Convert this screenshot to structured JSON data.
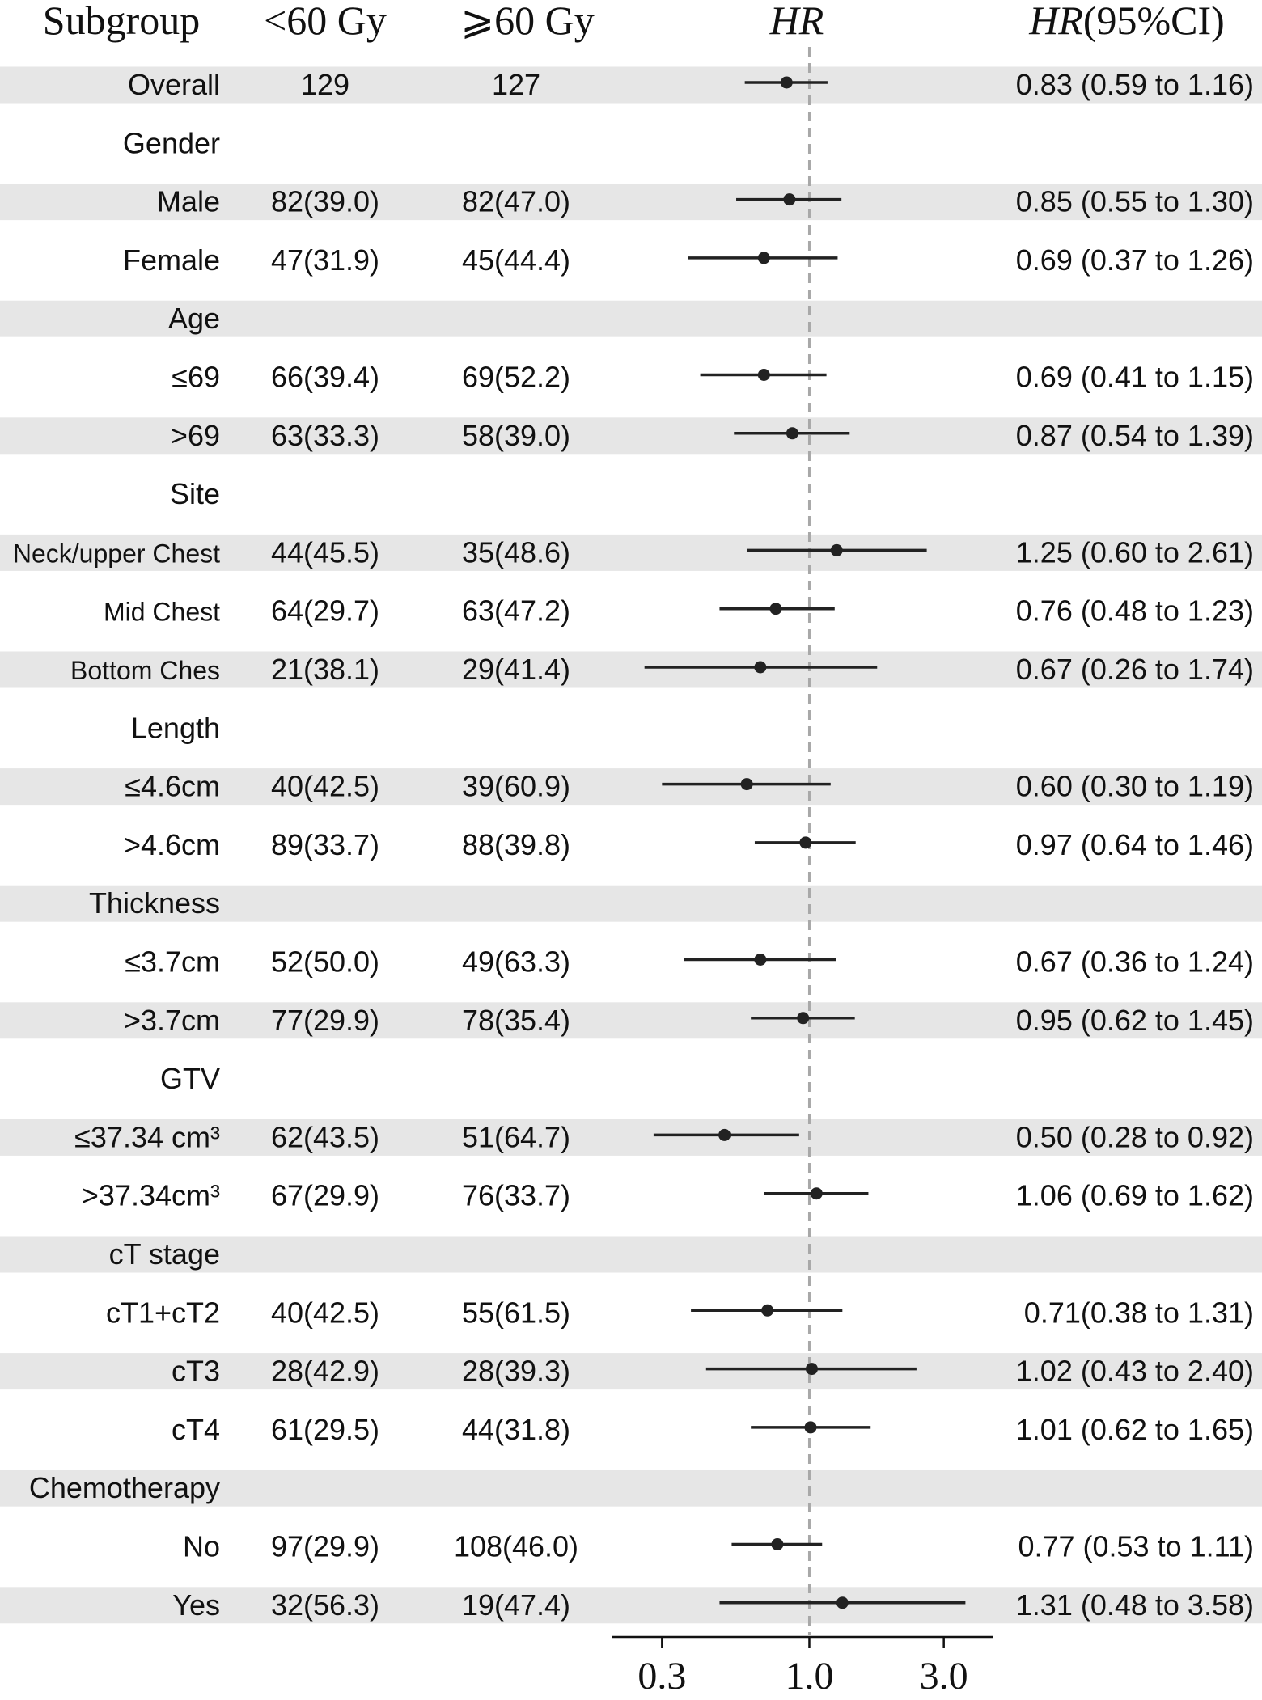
{
  "chart_data": {
    "type": "forest",
    "columns": {
      "subgroup": "Subgroup",
      "group_a": "<60 Gy",
      "group_b": "⩾60 Gy",
      "plot": "HR",
      "estimate_prefix": "HR",
      "estimate_suffix": "(95%CI)"
    },
    "x_scale": "log",
    "x_ticks": [
      0.3,
      1.0,
      3.0
    ],
    "x_tick_labels": [
      "0.3",
      "1.0",
      "3.0"
    ],
    "reference_line": 1.0,
    "rows": [
      {
        "label": "Overall",
        "a": "129",
        "b": "127",
        "hr": 0.83,
        "lo": 0.59,
        "hi": 1.16,
        "ci_text": "0.83 (0.59 to 1.16)",
        "header": false,
        "shaded": true
      },
      {
        "label": "Gender",
        "a": "",
        "b": "",
        "hr": null,
        "lo": null,
        "hi": null,
        "ci_text": "",
        "header": true,
        "shaded": false
      },
      {
        "label": "Male",
        "a": "82(39.0)",
        "b": "82(47.0)",
        "hr": 0.85,
        "lo": 0.55,
        "hi": 1.3,
        "ci_text": "0.85 (0.55 to 1.30)",
        "header": false,
        "shaded": true
      },
      {
        "label": "Female",
        "a": "47(31.9)",
        "b": "45(44.4)",
        "hr": 0.69,
        "lo": 0.37,
        "hi": 1.26,
        "ci_text": "0.69 (0.37 to 1.26)",
        "header": false,
        "shaded": false
      },
      {
        "label": "Age",
        "a": "",
        "b": "",
        "hr": null,
        "lo": null,
        "hi": null,
        "ci_text": "",
        "header": true,
        "shaded": true
      },
      {
        "label": "≤69",
        "a": "66(39.4)",
        "b": "69(52.2)",
        "hr": 0.69,
        "lo": 0.41,
        "hi": 1.15,
        "ci_text": "0.69 (0.41 to 1.15)",
        "header": false,
        "shaded": false
      },
      {
        "label": ">69",
        "a": "63(33.3)",
        "b": "58(39.0)",
        "hr": 0.87,
        "lo": 0.54,
        "hi": 1.39,
        "ci_text": "0.87 (0.54 to 1.39)",
        "header": false,
        "shaded": true
      },
      {
        "label": "Site",
        "a": "",
        "b": "",
        "hr": null,
        "lo": null,
        "hi": null,
        "ci_text": "",
        "header": true,
        "shaded": false
      },
      {
        "label": "Neck/upper Chest",
        "a": "44(45.5)",
        "b": "35(48.6)",
        "hr": 1.25,
        "lo": 0.6,
        "hi": 2.61,
        "ci_text": "1.25 (0.60 to 2.61)",
        "header": false,
        "shaded": true,
        "small": true
      },
      {
        "label": "Mid Chest",
        "a": "64(29.7)",
        "b": "63(47.2)",
        "hr": 0.76,
        "lo": 0.48,
        "hi": 1.23,
        "ci_text": "0.76 (0.48 to 1.23)",
        "header": false,
        "shaded": false,
        "small": true
      },
      {
        "label": "Bottom Ches",
        "a": "21(38.1)",
        "b": "29(41.4)",
        "hr": 0.67,
        "lo": 0.26,
        "hi": 1.74,
        "ci_text": "0.67 (0.26 to 1.74)",
        "header": false,
        "shaded": true,
        "small": true
      },
      {
        "label": "Length",
        "a": "",
        "b": "",
        "hr": null,
        "lo": null,
        "hi": null,
        "ci_text": "",
        "header": true,
        "shaded": false
      },
      {
        "label": "≤4.6cm",
        "a": "40(42.5)",
        "b": "39(60.9)",
        "hr": 0.6,
        "lo": 0.3,
        "hi": 1.19,
        "ci_text": "0.60 (0.30 to 1.19)",
        "header": false,
        "shaded": true
      },
      {
        "label": ">4.6cm",
        "a": "89(33.7)",
        "b": "88(39.8)",
        "hr": 0.97,
        "lo": 0.64,
        "hi": 1.46,
        "ci_text": "0.97 (0.64 to 1.46)",
        "header": false,
        "shaded": false
      },
      {
        "label": "Thickness",
        "a": "",
        "b": "",
        "hr": null,
        "lo": null,
        "hi": null,
        "ci_text": "",
        "header": true,
        "shaded": true
      },
      {
        "label": "≤3.7cm",
        "a": "52(50.0)",
        "b": "49(63.3)",
        "hr": 0.67,
        "lo": 0.36,
        "hi": 1.24,
        "ci_text": "0.67 (0.36 to 1.24)",
        "header": false,
        "shaded": false
      },
      {
        "label": ">3.7cm",
        "a": "77(29.9)",
        "b": "78(35.4)",
        "hr": 0.95,
        "lo": 0.62,
        "hi": 1.45,
        "ci_text": "0.95 (0.62 to 1.45)",
        "header": false,
        "shaded": true
      },
      {
        "label": "GTV",
        "a": "",
        "b": "",
        "hr": null,
        "lo": null,
        "hi": null,
        "ci_text": "",
        "header": true,
        "shaded": false
      },
      {
        "label": "≤37.34 cm³",
        "a": "62(43.5)",
        "b": "51(64.7)",
        "hr": 0.5,
        "lo": 0.28,
        "hi": 0.92,
        "ci_text": "0.50 (0.28 to 0.92)",
        "header": false,
        "shaded": true
      },
      {
        "label": ">37.34cm³",
        "a": "67(29.9)",
        "b": "76(33.7)",
        "hr": 1.06,
        "lo": 0.69,
        "hi": 1.62,
        "ci_text": "1.06 (0.69 to 1.62)",
        "header": false,
        "shaded": false
      },
      {
        "label": "cT stage",
        "a": "",
        "b": "",
        "hr": null,
        "lo": null,
        "hi": null,
        "ci_text": "",
        "header": true,
        "shaded": true
      },
      {
        "label": "cT1+cT2",
        "a": "40(42.5)",
        "b": "55(61.5)",
        "hr": 0.71,
        "lo": 0.38,
        "hi": 1.31,
        "ci_text": "0.71(0.38 to 1.31)",
        "header": false,
        "shaded": false
      },
      {
        "label": "cT3",
        "a": "28(42.9)",
        "b": "28(39.3)",
        "hr": 1.02,
        "lo": 0.43,
        "hi": 2.4,
        "ci_text": "1.02 (0.43 to 2.40)",
        "header": false,
        "shaded": true
      },
      {
        "label": "cT4",
        "a": "61(29.5)",
        "b": "44(31.8)",
        "hr": 1.01,
        "lo": 0.62,
        "hi": 1.65,
        "ci_text": "1.01 (0.62 to 1.65)",
        "header": false,
        "shaded": false
      },
      {
        "label": "Chemotherapy",
        "a": "",
        "b": "",
        "hr": null,
        "lo": null,
        "hi": null,
        "ci_text": "",
        "header": true,
        "shaded": true
      },
      {
        "label": "No",
        "a": "97(29.9)",
        "b": "108(46.0)",
        "hr": 0.77,
        "lo": 0.53,
        "hi": 1.11,
        "ci_text": "0.77 (0.53 to 1.11)",
        "header": false,
        "shaded": false
      },
      {
        "label": "Yes",
        "a": "32(56.3)",
        "b": "19(47.4)",
        "hr": 1.31,
        "lo": 0.48,
        "hi": 3.58,
        "ci_text": "1.31 (0.48 to 3.58)",
        "header": false,
        "shaded": true
      }
    ],
    "colors": {
      "band": "#e6e6e6",
      "text": "#111111",
      "marker": "#222222",
      "reference": "#a8a8a8"
    }
  }
}
